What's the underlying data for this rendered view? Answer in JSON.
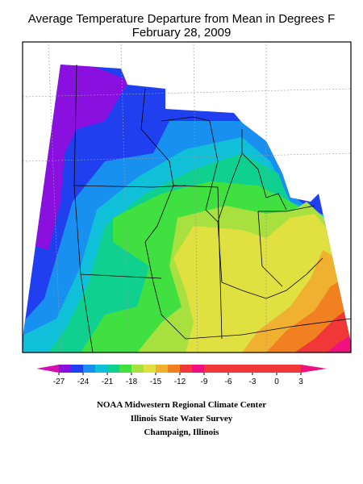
{
  "title": [
    "Average Temperature Departure from Mean in Degrees F",
    "February 28, 2009"
  ],
  "legend": {
    "ticks": [
      -27,
      -24,
      -21,
      -18,
      -15,
      -12,
      -9,
      -6,
      -3,
      0,
      3
    ],
    "colors": [
      "#d010b0",
      "#8a10e0",
      "#2040f0",
      "#1890f0",
      "#10c0d8",
      "#10d090",
      "#40e040",
      "#a8e040",
      "#e0e040",
      "#f0b030",
      "#f08020",
      "#f03838",
      "#f01080"
    ]
  },
  "credits": [
    "NOAA Midwestern Regional Climate Center",
    "Illinois State Water Survey",
    "Champaign, Illinois"
  ]
}
